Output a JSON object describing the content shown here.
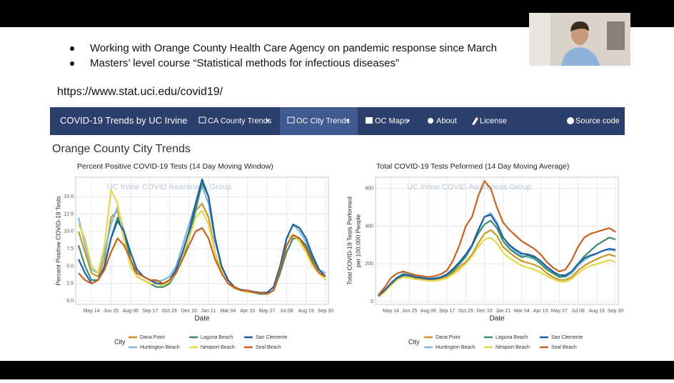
{
  "slide": {
    "bullets": [
      "Working with Orange County Health Care Agency on pandemic response since March",
      "Masters’ level course “Statistical methods for infectious diseases”"
    ],
    "url": "https://www.stat.uci.edu/covid19/"
  },
  "navbar": {
    "brand": "COVID-19 Trends by UC Irvine",
    "items": [
      "CA County Trends",
      "OC City Trends",
      "OC Maps",
      "About",
      "License",
      "Source code"
    ]
  },
  "page_heading": "Orange County City Trends",
  "chart_data": [
    {
      "type": "line",
      "title": "Percent Positive COVID-19 Tests (14 Day Moving Window)",
      "annotation": "UC Irvine COVID Awareness Group",
      "x_label": "Date",
      "y_label": "Percent Positive COVID-19 Tests",
      "legend_title": "City",
      "grid": true,
      "categories": [
        null,
        null,
        "May 14",
        null,
        null,
        "Jun 25",
        null,
        null,
        "Aug 06",
        null,
        null,
        "Sep 17",
        null,
        null,
        "Oct 29",
        null,
        null,
        "Dec 10",
        null,
        null,
        "Jan 21",
        null,
        null,
        "Mar 04",
        null,
        null,
        "Apr 15",
        null,
        null,
        "May 27",
        null,
        null,
        "Jul 08",
        null,
        null,
        "Aug 19",
        null,
        null,
        "Sep 30"
      ],
      "ylim": [
        -0.5,
        17.8
      ],
      "yticks": [
        {
          "value": 0,
          "label": "0.0"
        },
        2.5,
        {
          "value": 5,
          "label": "5.0"
        },
        7.5,
        {
          "value": 10,
          "label": "10.0"
        },
        12.5,
        {
          "value": 15,
          "label": "15.0"
        }
      ],
      "series": [
        {
          "name": "Dana Point",
          "color": "#c8962a",
          "values": [
            10,
            7,
            4,
            3.5,
            6,
            12,
            13,
            9,
            5,
            3.5,
            3,
            2.5,
            2,
            2,
            3,
            4.5,
            7,
            10,
            13,
            14,
            12,
            7,
            4,
            2.5,
            1.8,
            1.5,
            1.3,
            1.2,
            1,
            1,
            1.5,
            4,
            8,
            9.5,
            9,
            7.5,
            5.5,
            4,
            3.5
          ]
        },
        {
          "name": "Huntington Beach",
          "color": "#7fb8e0",
          "values": [
            12,
            8,
            4.5,
            4,
            7,
            11,
            13.5,
            10,
            6,
            4,
            3.5,
            3,
            2.8,
            3,
            3.5,
            5,
            8,
            11,
            14,
            16.5,
            14,
            8.5,
            5,
            3,
            2,
            1.6,
            1.5,
            1.3,
            1.2,
            1.2,
            2,
            5,
            9,
            11,
            10,
            8.5,
            6.5,
            4.5,
            4
          ]
        },
        {
          "name": "Laguna Beach",
          "color": "#3a8f6a",
          "values": [
            8,
            5,
            3,
            3,
            5,
            9,
            12,
            10,
            6,
            3.5,
            3,
            2.5,
            2,
            2,
            2.5,
            4,
            6,
            9,
            13,
            17,
            15,
            9,
            5,
            3,
            2,
            1.5,
            1.4,
            1.2,
            1,
            1,
            1.5,
            4,
            7,
            9,
            9,
            8,
            6,
            4.5,
            3.5
          ]
        },
        {
          "name": "Newport Beach",
          "color": "#e4d94a",
          "values": [
            11,
            9,
            5,
            4,
            8,
            16,
            14,
            9,
            5,
            3.5,
            3,
            2.5,
            2.5,
            2.2,
            2.8,
            4,
            6.5,
            9,
            12,
            13,
            11,
            7,
            4.5,
            3,
            2,
            1.5,
            1.4,
            1.2,
            1.2,
            1,
            1.5,
            5,
            9,
            9.5,
            8.5,
            7,
            5,
            4,
            3
          ]
        },
        {
          "name": "San Clemente",
          "color": "#1f5fa0",
          "values": [
            6,
            4,
            2.5,
            3,
            5,
            9,
            11.5,
            10,
            7,
            4.5,
            3.5,
            3,
            2.5,
            2.5,
            3,
            4.5,
            7,
            10,
            14,
            17.5,
            15,
            9,
            5,
            3,
            2,
            1.6,
            1.5,
            1.3,
            1.2,
            1.2,
            2,
            5,
            9,
            11,
            10.5,
            9,
            6.5,
            4.5,
            3.5
          ]
        },
        {
          "name": "Seal Beach",
          "color": "#c8611f",
          "values": [
            4,
            3,
            2.5,
            3,
            4.5,
            7,
            9,
            8,
            6,
            4,
            3.5,
            3,
            3,
            2.5,
            3,
            4,
            6,
            8,
            10,
            10.5,
            9,
            6,
            4,
            2.5,
            2,
            1.5,
            1.5,
            1.2,
            1.2,
            1,
            1.5,
            4.5,
            8,
            9.5,
            9,
            7.5,
            5.5,
            4,
            3.5
          ]
        }
      ]
    },
    {
      "type": "line",
      "title": "Total COVID-19 Tests Peformed (14 Day Moving Average)",
      "annotation": "UC Irvine COVID Awareness Group",
      "x_label": "Date",
      "y_label": [
        "Total COVID-19 Tests Performed",
        "per 100,000 People"
      ],
      "legend_title": "City",
      "grid": true,
      "categories": [
        null,
        null,
        "May 14",
        null,
        null,
        "Jun 25",
        null,
        null,
        "Aug 06",
        null,
        null,
        "Sep 17",
        null,
        null,
        "Oct 29",
        null,
        null,
        "Dec 10",
        null,
        null,
        "Jan 21",
        null,
        null,
        "Mar 04",
        null,
        null,
        "Apr 15",
        null,
        null,
        "May 27",
        null,
        null,
        "Jul 08",
        null,
        null,
        "Aug 19",
        null,
        null,
        "Sep 30"
      ],
      "ylim": [
        -15,
        660
      ],
      "yticks": [
        0,
        200,
        400,
        600
      ],
      "series": [
        {
          "name": "Dana Point",
          "color": "#c8962a",
          "values": [
            25,
            55,
            90,
            120,
            140,
            135,
            125,
            120,
            115,
            115,
            120,
            130,
            155,
            185,
            210,
            250,
            310,
            360,
            380,
            350,
            290,
            260,
            235,
            215,
            205,
            195,
            180,
            150,
            130,
            115,
            115,
            130,
            165,
            190,
            210,
            225,
            240,
            250,
            240
          ]
        },
        {
          "name": "Huntington Beach",
          "color": "#7fb8e0",
          "values": [
            30,
            60,
            100,
            130,
            150,
            145,
            135,
            130,
            125,
            125,
            130,
            140,
            170,
            200,
            235,
            290,
            370,
            450,
            470,
            420,
            340,
            295,
            265,
            245,
            235,
            225,
            205,
            175,
            150,
            130,
            130,
            150,
            190,
            220,
            240,
            255,
            270,
            275,
            270
          ]
        },
        {
          "name": "Laguna Beach",
          "color": "#3a8f6a",
          "values": [
            25,
            55,
            95,
            125,
            145,
            140,
            130,
            125,
            120,
            120,
            128,
            140,
            165,
            200,
            240,
            300,
            360,
            410,
            430,
            390,
            320,
            280,
            255,
            235,
            245,
            230,
            200,
            170,
            150,
            130,
            135,
            160,
            200,
            240,
            270,
            300,
            320,
            340,
            330
          ]
        },
        {
          "name": "Newport Beach",
          "color": "#e4d94a",
          "values": [
            25,
            50,
            85,
            115,
            130,
            125,
            118,
            115,
            110,
            110,
            115,
            125,
            145,
            170,
            200,
            240,
            290,
            330,
            340,
            310,
            260,
            230,
            210,
            190,
            180,
            170,
            155,
            135,
            120,
            105,
            105,
            120,
            150,
            175,
            190,
            200,
            210,
            220,
            210
          ]
        },
        {
          "name": "San Clemente",
          "color": "#1f5fa0",
          "values": [
            30,
            60,
            95,
            125,
            140,
            138,
            130,
            125,
            120,
            122,
            130,
            145,
            175,
            210,
            250,
            300,
            380,
            450,
            460,
            410,
            340,
            300,
            275,
            255,
            250,
            240,
            215,
            185,
            160,
            140,
            140,
            160,
            200,
            230,
            245,
            255,
            270,
            280,
            275
          ]
        },
        {
          "name": "Seal Beach",
          "color": "#c8611f",
          "values": [
            35,
            75,
            125,
            150,
            160,
            150,
            140,
            135,
            130,
            135,
            145,
            165,
            220,
            300,
            400,
            450,
            560,
            640,
            600,
            500,
            420,
            380,
            350,
            320,
            300,
            280,
            250,
            210,
            180,
            160,
            170,
            220,
            290,
            340,
            360,
            370,
            380,
            390,
            370
          ]
        }
      ]
    }
  ]
}
